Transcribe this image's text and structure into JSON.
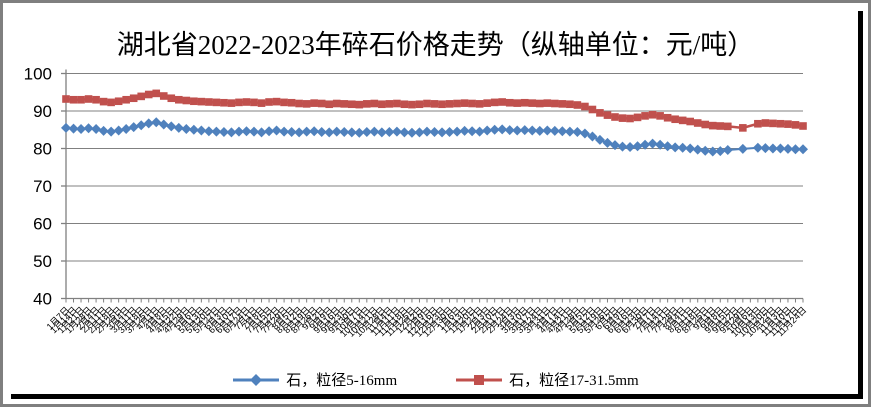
{
  "window": {
    "background": "#ffffff",
    "frame_color": "#7f7f7f",
    "shadow_color": "#000000"
  },
  "chart_data": {
    "type": "line",
    "title": "湖北省2022-2023年碎石价格走势（纵轴单位：元/吨）",
    "xlabel": "",
    "ylabel": "",
    "ylim": [
      40,
      100
    ],
    "ytick_step": 10,
    "grid": true,
    "gridline_color": "#808080",
    "axis_color": "#808080",
    "legend_position": "bottom",
    "x_labels": [
      "1月7日",
      "1月14日",
      "1月21日",
      "1月28日",
      "2月4日",
      "2月11日",
      "2月18日",
      "2月25日",
      "3月4日",
      "3月11日",
      "3月18日",
      "3月25日",
      "4月1日",
      "4月8日",
      "4月15日",
      "4月22日",
      "4月29日",
      "5月6日",
      "5月13日",
      "5月20日",
      "5月27日",
      "6月3日",
      "6月10日",
      "6月17日",
      "6月24日",
      "7月1日",
      "7月8日",
      "7月15日",
      "7月22日",
      "7月29日",
      "8月5日",
      "8月12日",
      "8月19日",
      "8月26日",
      "9月2日",
      "9月9日",
      "9月16日",
      "9月23日",
      "9月30日",
      "10月7日",
      "10月14日",
      "10月21日",
      "10月28日",
      "11月4日",
      "11月11日",
      "11月18日",
      "11月25日",
      "12月2日",
      "12月9日",
      "12月16日",
      "12月23日",
      "12月30日",
      "1月6日",
      "1月13日",
      "1月20日",
      "1月27日",
      "2月3日",
      "2月10日",
      "2月17日",
      "2月24日",
      "3月3日",
      "3月10日",
      "3月17日",
      "3月24日",
      "3月31日",
      "4月7日",
      "4月14日",
      "4月21日",
      "4月28日",
      "5月5日",
      "5月12日",
      "5月19日",
      "5月26日",
      "6月2日",
      "6月9日",
      "6月16日",
      "6月23日",
      "6月30日",
      "7月7日",
      "7月14日",
      "7月21日",
      "7月28日",
      "8月4日",
      "8月11日",
      "8月18日",
      "8月25日",
      "9月1日",
      "9月8日",
      "9月15日",
      "9月22日",
      "9月29日",
      "10月6日",
      "10月13日",
      "10月20日",
      "10月27日",
      "11月3日",
      "11月10日",
      "11月17日",
      "11月24日"
    ],
    "series": [
      {
        "name": "石，粒径5-16mm",
        "color": "#4F81BD",
        "marker": "diamond",
        "values": [
          85.5,
          85.3,
          85.2,
          85.4,
          85.2,
          84.7,
          84.5,
          84.8,
          85.2,
          85.7,
          86.2,
          86.7,
          87.0,
          86.4,
          85.9,
          85.5,
          85.2,
          85.0,
          84.8,
          84.6,
          84.5,
          84.4,
          84.3,
          84.5,
          84.6,
          84.5,
          84.3,
          84.6,
          84.8,
          84.5,
          84.4,
          84.3,
          84.5,
          84.6,
          84.4,
          84.3,
          84.5,
          84.4,
          84.3,
          84.2,
          84.4,
          84.5,
          84.3,
          84.4,
          84.5,
          84.3,
          84.2,
          84.3,
          84.5,
          84.4,
          84.3,
          84.4,
          84.5,
          84.7,
          84.6,
          84.5,
          84.8,
          85.0,
          85.1,
          84.9,
          84.8,
          84.9,
          84.8,
          84.7,
          84.8,
          84.7,
          84.6,
          84.5,
          84.4,
          84.0,
          83.2,
          82.3,
          81.5,
          80.9,
          80.5,
          80.4,
          80.6,
          81.0,
          81.3,
          81.0,
          80.6,
          80.3,
          80.2,
          80.0,
          79.7,
          79.4,
          79.2,
          79.3,
          79.6,
          null,
          79.9,
          null,
          80.2,
          80.1,
          80.0,
          80.0,
          79.9,
          79.8,
          79.8
        ]
      },
      {
        "name": "石，粒径17-31.5mm",
        "color": "#C0504D",
        "marker": "square",
        "values": [
          93.2,
          93.0,
          93.0,
          93.2,
          93.0,
          92.5,
          92.3,
          92.6,
          93.0,
          93.4,
          93.9,
          94.4,
          94.7,
          94.0,
          93.4,
          93.0,
          92.8,
          92.6,
          92.5,
          92.4,
          92.3,
          92.2,
          92.1,
          92.3,
          92.4,
          92.3,
          92.1,
          92.4,
          92.5,
          92.3,
          92.2,
          92.0,
          91.9,
          92.1,
          92.0,
          91.8,
          92.0,
          91.9,
          91.8,
          91.7,
          91.9,
          92.0,
          91.8,
          91.9,
          92.0,
          91.8,
          91.7,
          91.8,
          92.0,
          91.9,
          91.8,
          91.9,
          92.0,
          92.1,
          92.0,
          91.9,
          92.1,
          92.3,
          92.4,
          92.2,
          92.1,
          92.2,
          92.1,
          92.0,
          92.1,
          92.0,
          91.9,
          91.8,
          91.6,
          91.2,
          90.4,
          89.5,
          88.9,
          88.4,
          88.1,
          88.0,
          88.3,
          88.7,
          89.0,
          88.7,
          88.2,
          87.8,
          87.5,
          87.2,
          86.8,
          86.4,
          86.1,
          86.0,
          85.9,
          null,
          85.5,
          null,
          86.6,
          86.8,
          86.7,
          86.6,
          86.5,
          86.3,
          86.0
        ]
      }
    ]
  }
}
